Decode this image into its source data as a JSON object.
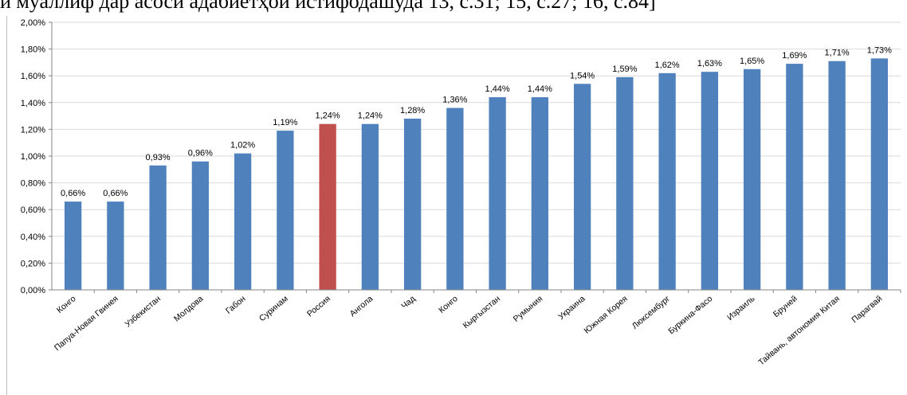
{
  "page": {
    "caption": "и муаллиф дар асоси адабиётҳои истифодашуда 13, с.31; 15, с.27; 16, с.84]"
  },
  "colors": {
    "bar": "#4f81bd",
    "highlight": "#c0504d",
    "grid": "#d9d9d9",
    "axis": "#868686"
  },
  "chart_data": {
    "type": "bar",
    "categories": [
      "Конго",
      "Папуа-Новая Гвинея",
      "Узбекистан",
      "Молдова",
      "Габон",
      "Суринам",
      "Россия",
      "Ангола",
      "Чад",
      "Конго",
      "Кыргызстан",
      "Румыния",
      "Украина",
      "Южная Корея",
      "Люксембург",
      "Буркина-Фасо",
      "Израиль",
      "Бруней",
      "Тайвань, автономия Китая",
      "Парагвай"
    ],
    "values": [
      0.66,
      0.66,
      0.93,
      0.96,
      1.02,
      1.19,
      1.24,
      1.24,
      1.28,
      1.36,
      1.44,
      1.44,
      1.54,
      1.59,
      1.62,
      1.63,
      1.65,
      1.69,
      1.71,
      1.73
    ],
    "data_labels": [
      "0,66%",
      "0,66%",
      "0,93%",
      "0,96%",
      "1,02%",
      "1,19%",
      "1,24%",
      "1,24%",
      "1,28%",
      "1,36%",
      "1,44%",
      "1,44%",
      "1,54%",
      "1,59%",
      "1,62%",
      "1,63%",
      "1,65%",
      "1,69%",
      "1,71%",
      "1,73%"
    ],
    "highlight_category": "Россия",
    "y_ticks": [
      "0,00%",
      "0,20%",
      "0,40%",
      "0,60%",
      "0,80%",
      "1,00%",
      "1,20%",
      "1,40%",
      "1,60%",
      "1,80%",
      "2,00%"
    ],
    "ylim": [
      0,
      2.0
    ],
    "grid": true,
    "legend": "none"
  }
}
